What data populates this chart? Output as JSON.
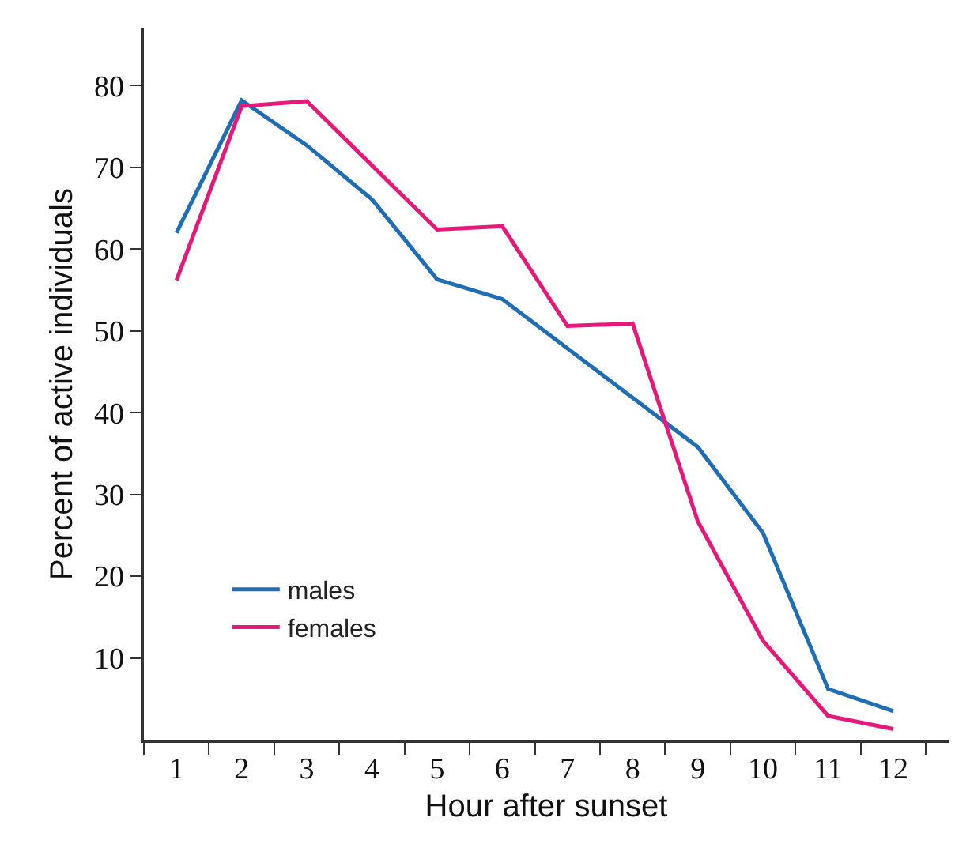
{
  "chart_data": {
    "type": "line",
    "xlabel": "Hour after sunset",
    "ylabel": "Percent of active individuals",
    "xlim": [
      0.5,
      12.85
    ],
    "ylim": [
      0,
      87
    ],
    "xticks": [
      {
        "value": 0.5,
        "label": null
      },
      1,
      {
        "value": 1.5,
        "label": null
      },
      2,
      {
        "value": 2.5,
        "label": null
      },
      3,
      {
        "value": 3.5,
        "label": null
      },
      4,
      {
        "value": 4.5,
        "label": null
      },
      5,
      {
        "value": 5.5,
        "label": null
      },
      6,
      {
        "value": 6.5,
        "label": null
      },
      7,
      {
        "value": 7.5,
        "label": null
      },
      8,
      {
        "value": 8.5,
        "label": null
      },
      9,
      {
        "value": 9.5,
        "label": null
      },
      10,
      {
        "value": 10.5,
        "label": null
      },
      11,
      {
        "value": 11.5,
        "label": null
      },
      12,
      {
        "value": 12.5,
        "label": null
      }
    ],
    "yticks": [
      10,
      20,
      30,
      40,
      50,
      60,
      70,
      80
    ],
    "series": [
      {
        "name": "males",
        "color": "#1f6db5",
        "x": [
          1,
          2,
          3,
          4,
          5,
          6,
          9,
          10,
          11,
          12
        ],
        "values": [
          62,
          78.2,
          72.7,
          66.1,
          56.3,
          53.9,
          35.8,
          25.3,
          6.2,
          3.5
        ]
      },
      {
        "name": "females",
        "color": "#e8177a",
        "x": [
          1,
          2,
          3,
          5,
          6,
          7,
          8,
          9,
          10,
          11,
          12
        ],
        "values": [
          56.2,
          77.5,
          78.1,
          62.4,
          62.8,
          50.6,
          50.9,
          26.7,
          12.1,
          2.9,
          1.3
        ]
      }
    ],
    "legend": "bottom left",
    "marker": "none",
    "line_style": "solid"
  }
}
